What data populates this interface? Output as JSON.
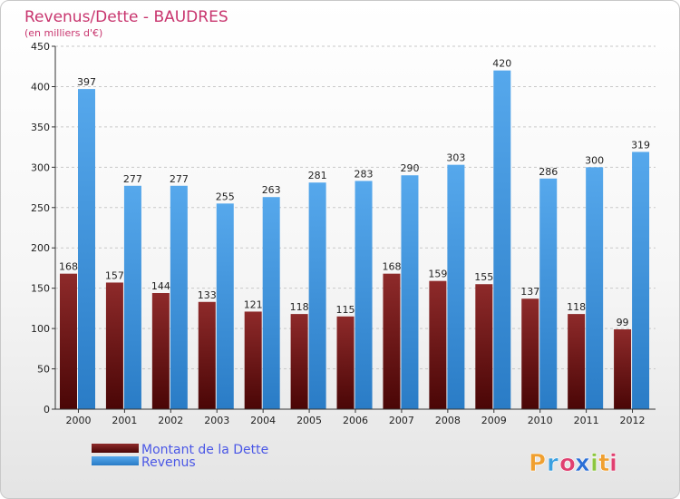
{
  "chart_data": {
    "type": "bar",
    "title": "Revenus/Dette - BAUDRES",
    "subtitle": "(en milliers d'€)",
    "categories": [
      "2000",
      "2001",
      "2002",
      "2003",
      "2004",
      "2005",
      "2006",
      "2007",
      "2008",
      "2009",
      "2010",
      "2011",
      "2012"
    ],
    "series": [
      {
        "name": "Montant de la Dette",
        "color": "#7a1a1a",
        "values": [
          168,
          157,
          144,
          133,
          121,
          118,
          115,
          168,
          159,
          155,
          137,
          118,
          99
        ]
      },
      {
        "name": "Revenus",
        "color": "#3d94de",
        "values": [
          397,
          277,
          277,
          255,
          263,
          281,
          283,
          290,
          303,
          420,
          286,
          300,
          319
        ]
      }
    ],
    "ylim": [
      0,
      450
    ],
    "yticks": [
      0,
      50,
      100,
      150,
      200,
      250,
      300,
      350,
      400,
      450
    ],
    "grid": true,
    "legend_position": "bottom-left"
  },
  "logo": {
    "letters": [
      "P",
      "r",
      "o",
      "x",
      "i",
      "t",
      "i"
    ],
    "colors": [
      "#f0a030",
      "#3aa0e0",
      "#e04070",
      "#2b6fd6",
      "#8cc63f",
      "#f0a030",
      "#e04070"
    ]
  }
}
